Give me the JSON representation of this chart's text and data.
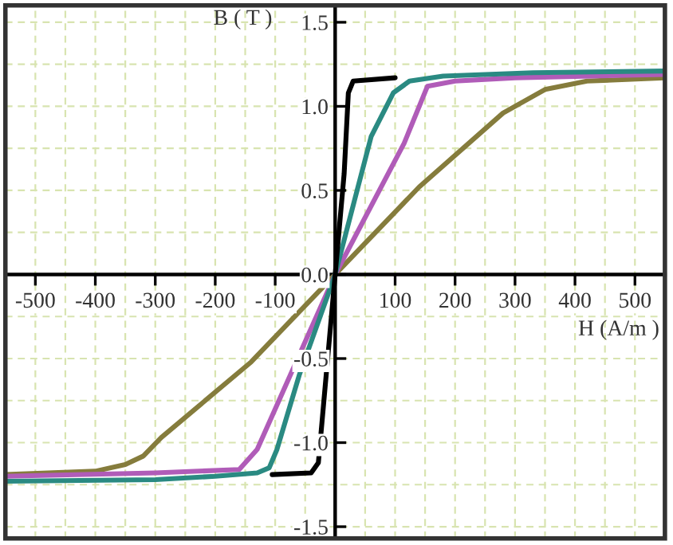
{
  "chart_data": {
    "type": "line",
    "xlabel": "H (A/m )",
    "ylabel": "B ( T )",
    "xlim": [
      -550,
      550
    ],
    "ylim": [
      -1.57,
      1.6
    ],
    "xticks": [
      -500,
      -400,
      -300,
      -200,
      -100,
      {
        "value": 0,
        "label": null
      },
      100,
      200,
      300,
      400,
      500
    ],
    "yticks": [
      -1.5,
      {
        "value": -1,
        "label": "-1.0"
      },
      -0.5,
      {
        "value": 0,
        "label": "0.0"
      },
      0.5,
      {
        "value": 1,
        "label": "1.0"
      },
      1.5
    ],
    "grid": true,
    "line_style": "solid",
    "marker": "none",
    "series": [
      {
        "color": "#857c3c",
        "x": [
          -550,
          -400,
          -350,
          -320,
          -290,
          -140,
          0,
          140,
          280,
          350,
          420,
          550
        ],
        "values": [
          -1.19,
          -1.17,
          -1.13,
          -1.08,
          -0.97,
          -0.52,
          0,
          0.52,
          0.96,
          1.1,
          1.15,
          1.17
        ]
      },
      {
        "color": "#b05cb8",
        "x": [
          -550,
          -300,
          -160,
          -130,
          -80,
          0,
          115,
          154,
          200,
          300,
          550
        ],
        "values": [
          -1.2,
          -1.18,
          -1.16,
          -1.04,
          -0.64,
          0,
          0.78,
          1.12,
          1.15,
          1.17,
          1.19
        ]
      },
      {
        "color": "#2a8a82",
        "x": [
          -550,
          -300,
          -200,
          -130,
          -110,
          -97,
          -60,
          0,
          60,
          97,
          124,
          180,
          330,
          550
        ],
        "values": [
          -1.23,
          -1.22,
          -1.2,
          -1.18,
          -1.15,
          -1.04,
          -0.6,
          0,
          0.82,
          1.08,
          1.15,
          1.18,
          1.2,
          1.21
        ]
      },
      {
        "color": "#000000",
        "x": [
          -105,
          -40,
          -28,
          -15,
          0,
          15,
          22,
          30,
          100
        ],
        "values": [
          -1.19,
          -1.18,
          -1.12,
          -0.6,
          0,
          0.6,
          1.08,
          1.15,
          1.17
        ]
      }
    ]
  }
}
